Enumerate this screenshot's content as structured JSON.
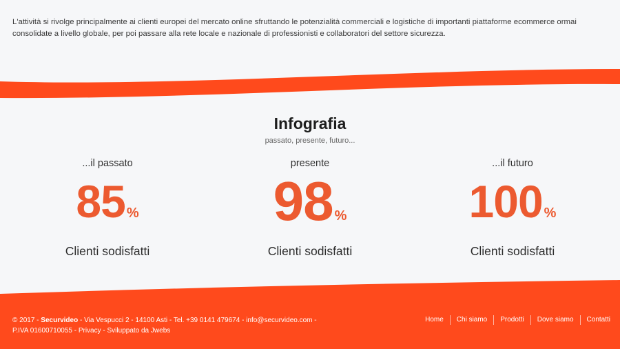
{
  "intro": {
    "text": "L'attività si rivolge principalmente ai clienti europei del mercato online sfruttando le potenzialità commerciali e logistiche di importanti piattaforme ecommerce ormai consolidate a livello globale, per poi passare alla rete locale e nazionale di professionisti e collaboratori del settore sicurezza."
  },
  "infografia": {
    "title": "Infografia",
    "subtitle": "passato, presente, futuro...",
    "stats": [
      {
        "label": "...il passato",
        "value": "85",
        "unit": "%",
        "caption": "Clienti sodisfatti"
      },
      {
        "label": "presente",
        "value": "98",
        "unit": "%",
        "caption": "Clienti sodisfatti"
      },
      {
        "label": "...il futuro",
        "value": "100",
        "unit": "%",
        "caption": "Clienti sodisfatti"
      }
    ]
  },
  "footer": {
    "copyright": "© 2017 -",
    "brand": "Securvideo",
    "address": "- Via Vespucci 2 - 14100 Asti - Tel. +39 0141 479674 -",
    "email": "info@securvideo.com",
    "email_suffix": "-",
    "piva": "P.IVA 01600710055 -",
    "privacy": "Privacy",
    "dev_prefix": "- Sviluppato da",
    "dev": "Jwebs",
    "nav": [
      "Home",
      "Chi siamo",
      "Prodotti",
      "Dove siamo",
      "Contatti"
    ]
  },
  "colors": {
    "accent": "#ff4a1c",
    "number": "#ec5a30",
    "background": "#f6f7f9"
  }
}
